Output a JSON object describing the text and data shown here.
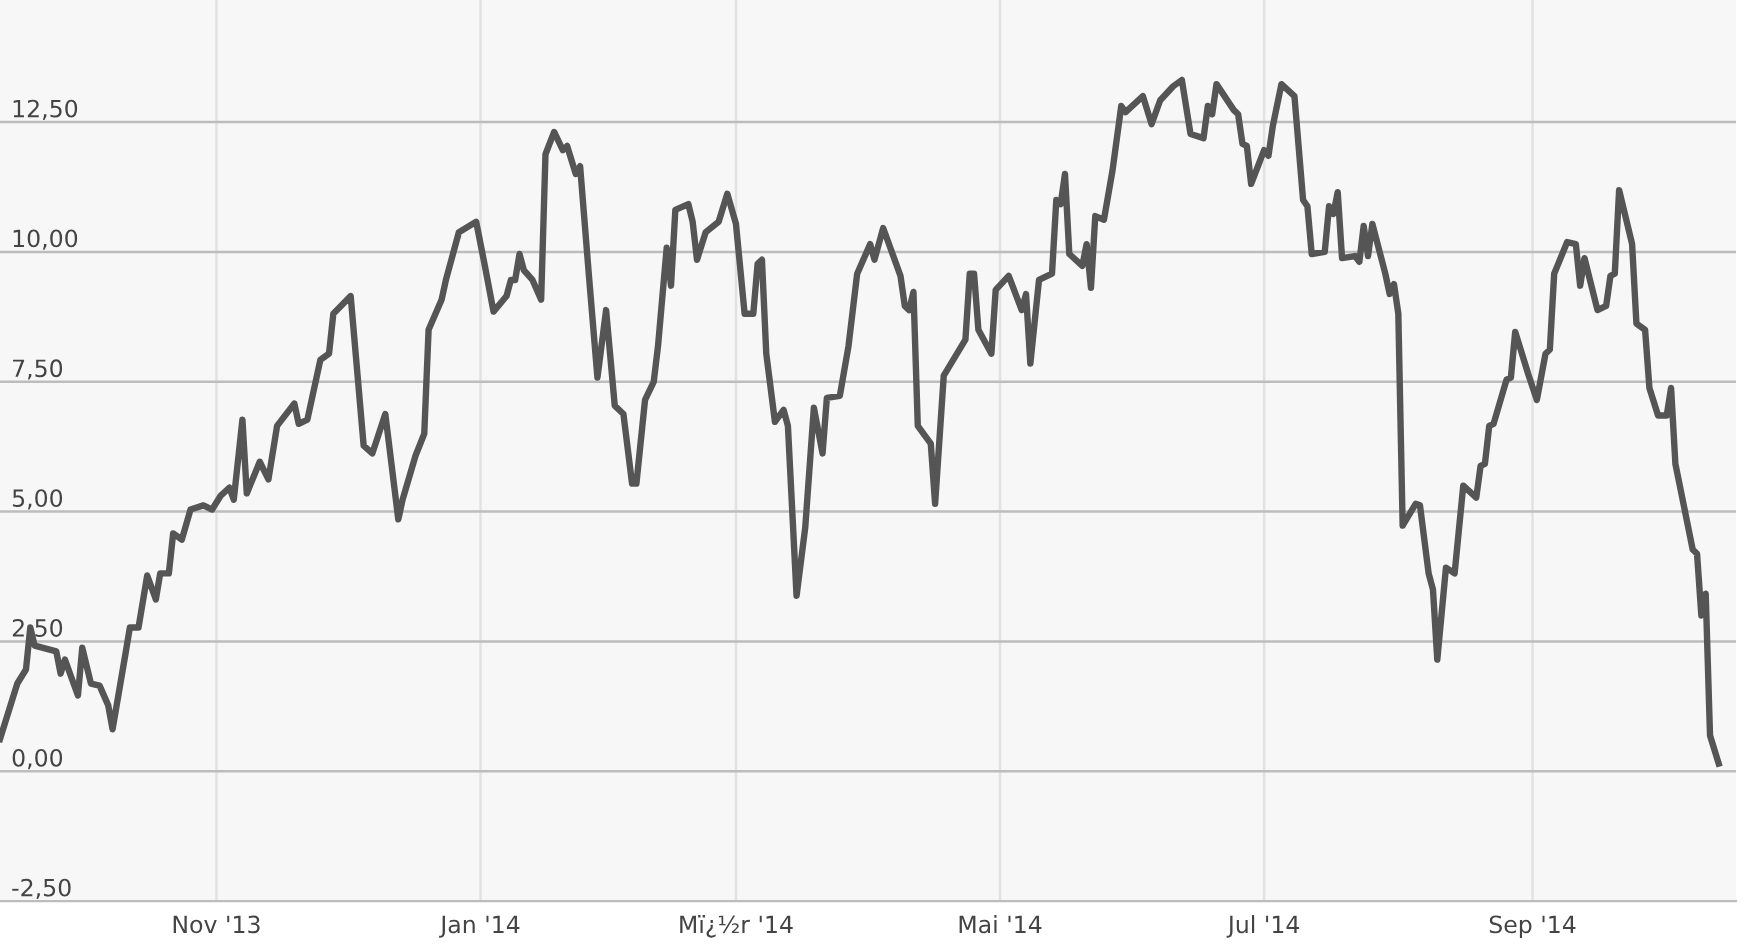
{
  "chart_data": {
    "type": "line",
    "x": [
      "2013-09-12",
      "2013-09-16",
      "2013-09-18",
      "2013-09-19",
      "2013-09-20",
      "2013-09-25",
      "2013-09-26",
      "2013-09-27",
      "2013-09-30",
      "2013-10-01",
      "2013-10-03",
      "2013-10-05",
      "2013-10-07",
      "2013-10-08",
      "2013-10-11",
      "2013-10-12",
      "2013-10-14",
      "2013-10-16",
      "2013-10-18",
      "2013-10-19",
      "2013-10-21",
      "2013-10-22",
      "2013-10-24",
      "2013-10-26",
      "2013-10-29",
      "2013-10-31",
      "2013-11-02",
      "2013-11-04",
      "2013-11-05",
      "2013-11-07",
      "2013-11-08",
      "2013-11-11",
      "2013-11-13",
      "2013-11-15",
      "2013-11-19",
      "2013-11-20",
      "2013-11-22",
      "2013-11-25",
      "2013-11-27",
      "2013-11-28",
      "2013-12-02",
      "2013-12-05",
      "2013-12-07",
      "2013-12-10",
      "2013-12-13",
      "2013-12-14",
      "2013-12-17",
      "2013-12-19",
      "2013-12-20",
      "2013-12-23",
      "2013-12-24",
      "2013-12-27",
      "2013-12-31",
      "2014-01-02",
      "2014-01-04",
      "2014-01-07",
      "2014-01-08",
      "2014-01-09",
      "2014-01-10",
      "2014-01-11",
      "2014-01-13",
      "2014-01-15",
      "2014-01-16",
      "2014-01-18",
      "2014-01-20",
      "2014-01-21",
      "2014-01-23",
      "2014-01-24",
      "2014-01-26",
      "2014-01-28",
      "2014-01-30",
      "2014-02-01",
      "2014-02-03",
      "2014-02-05",
      "2014-02-06",
      "2014-02-08",
      "2014-02-10",
      "2014-02-11",
      "2014-02-13",
      "2014-02-14",
      "2014-02-15",
      "2014-02-18",
      "2014-02-19",
      "2014-02-20",
      "2014-02-22",
      "2014-02-25",
      "2014-02-27",
      "2014-03-01",
      "2014-03-03",
      "2014-03-05",
      "2014-03-06",
      "2014-03-07",
      "2014-03-08",
      "2014-03-10",
      "2014-03-12",
      "2014-03-13",
      "2014-03-15",
      "2014-03-17",
      "2014-03-19",
      "2014-03-21",
      "2014-03-22",
      "2014-03-25",
      "2014-03-27",
      "2014-03-29",
      "2014-04-01",
      "2014-04-02",
      "2014-04-04",
      "2014-04-08",
      "2014-04-09",
      "2014-04-10",
      "2014-04-11",
      "2014-04-12",
      "2014-04-15",
      "2014-04-16",
      "2014-04-18",
      "2014-04-23",
      "2014-04-24",
      "2014-04-25",
      "2014-04-26",
      "2014-04-29",
      "2014-04-30",
      "2014-05-03",
      "2014-05-06",
      "2014-05-07",
      "2014-05-08",
      "2014-05-10",
      "2014-05-13",
      "2014-05-14",
      "2014-05-15",
      "2014-05-16",
      "2014-05-17",
      "2014-05-20",
      "2014-05-21",
      "2014-05-22",
      "2014-05-23",
      "2014-05-25",
      "2014-05-27",
      "2014-05-29",
      "2014-05-30",
      "2014-06-03",
      "2014-06-05",
      "2014-06-07",
      "2014-06-10",
      "2014-06-12",
      "2014-06-14",
      "2014-06-17",
      "2014-06-18",
      "2014-06-19",
      "2014-06-20",
      "2014-06-24",
      "2014-06-25",
      "2014-06-26",
      "2014-06-27",
      "2014-06-28",
      "2014-07-01",
      "2014-07-02",
      "2014-07-03",
      "2014-07-05",
      "2014-07-08",
      "2014-07-10",
      "2014-07-11",
      "2014-07-12",
      "2014-07-15",
      "2014-07-16",
      "2014-07-17",
      "2014-07-18",
      "2014-07-19",
      "2014-07-22",
      "2014-07-23",
      "2014-07-24",
      "2014-07-25",
      "2014-07-26",
      "2014-07-29",
      "2014-07-30",
      "2014-07-31",
      "2014-08-01",
      "2014-08-02",
      "2014-08-05",
      "2014-08-06",
      "2014-08-08",
      "2014-08-09",
      "2014-08-10",
      "2014-08-12",
      "2014-08-14",
      "2014-08-16",
      "2014-08-19",
      "2014-08-20",
      "2014-08-21",
      "2014-08-22",
      "2014-08-23",
      "2014-08-26",
      "2014-08-27",
      "2014-08-28",
      "2014-08-31",
      "2014-09-02",
      "2014-09-04",
      "2014-09-05",
      "2014-09-06",
      "2014-09-09",
      "2014-09-11",
      "2014-09-12",
      "2014-09-13",
      "2014-09-16",
      "2014-09-18",
      "2014-09-19",
      "2014-09-20",
      "2014-09-21",
      "2014-09-24",
      "2014-09-25",
      "2014-09-27",
      "2014-09-28",
      "2014-09-30",
      "2014-10-02",
      "2014-10-03",
      "2014-10-04",
      "2014-10-08",
      "2014-10-09",
      "2014-10-10",
      "2014-10-11",
      "2014-10-12",
      "2014-10-14"
    ],
    "series": [
      {
        "color": "#555555",
        "values": [
          0.62,
          1.69,
          1.96,
          2.77,
          2.42,
          2.31,
          1.88,
          2.15,
          1.46,
          2.38,
          1.69,
          1.65,
          1.27,
          0.81,
          2.27,
          2.77,
          2.77,
          3.77,
          3.31,
          3.81,
          3.81,
          4.58,
          4.46,
          5.04,
          5.12,
          5.04,
          5.31,
          5.46,
          5.23,
          6.77,
          5.35,
          5.96,
          5.62,
          6.65,
          7.08,
          6.69,
          6.77,
          7.92,
          8.04,
          8.81,
          9.15,
          6.27,
          6.12,
          6.88,
          4.85,
          5.23,
          6.08,
          6.5,
          8.5,
          9.08,
          9.46,
          10.38,
          10.58,
          9.73,
          8.85,
          9.15,
          9.46,
          9.46,
          9.96,
          9.65,
          9.46,
          9.08,
          11.88,
          12.31,
          11.96,
          12.04,
          11.5,
          11.65,
          9.58,
          7.58,
          8.88,
          7.04,
          6.88,
          5.54,
          5.54,
          7.15,
          7.5,
          8.19,
          10.08,
          9.35,
          10.81,
          10.92,
          10.58,
          9.85,
          10.38,
          10.58,
          11.12,
          10.54,
          8.81,
          8.81,
          9.77,
          9.85,
          8.04,
          6.73,
          6.96,
          6.65,
          3.38,
          4.69,
          7.0,
          6.12,
          7.19,
          7.23,
          8.19,
          9.58,
          10.15,
          9.85,
          10.46,
          9.54,
          8.96,
          8.88,
          9.23,
          6.65,
          6.31,
          5.15,
          7.62,
          8.31,
          9.58,
          9.58,
          8.5,
          8.04,
          9.27,
          9.54,
          8.88,
          9.19,
          7.85,
          9.46,
          9.58,
          11.0,
          10.92,
          11.5,
          9.96,
          9.73,
          10.15,
          9.31,
          10.69,
          10.62,
          11.58,
          12.81,
          12.69,
          13.0,
          12.46,
          12.92,
          13.19,
          13.31,
          12.27,
          12.19,
          12.81,
          12.65,
          13.23,
          12.73,
          12.65,
          12.08,
          12.04,
          11.31,
          11.96,
          11.85,
          12.42,
          13.23,
          13.0,
          11.0,
          10.88,
          9.96,
          10.0,
          10.88,
          10.73,
          11.15,
          9.88,
          9.92,
          9.81,
          10.5,
          9.92,
          10.54,
          9.58,
          9.19,
          9.38,
          8.81,
          4.73,
          5.15,
          5.12,
          3.81,
          3.5,
          2.15,
          3.92,
          3.81,
          5.5,
          5.27,
          5.88,
          5.92,
          6.65,
          6.69,
          7.54,
          7.58,
          8.46,
          7.65,
          7.15,
          8.04,
          8.12,
          9.58,
          10.19,
          10.15,
          9.35,
          9.88,
          8.88,
          8.96,
          9.54,
          9.58,
          11.19,
          10.15,
          8.62,
          8.5,
          7.38,
          6.85,
          6.85,
          7.38,
          5.92,
          4.27,
          4.19,
          3.0,
          3.42,
          0.69,
          0.15
        ]
      }
    ],
    "xlim": [
      "2013-09-12",
      "2014-10-18"
    ],
    "xticks": [
      {
        "value": "2013-11-01",
        "label": "Nov '13"
      },
      {
        "value": "2014-01-01",
        "label": "Jan '14"
      },
      {
        "value": "2014-03-01",
        "label": "Mï¿½r '14"
      },
      {
        "value": "2014-05-01",
        "label": "Mai '14"
      },
      {
        "value": "2014-07-01",
        "label": "Jul '14"
      },
      {
        "value": "2014-09-01",
        "label": "Sep '14"
      }
    ],
    "ylim": [
      -2.5,
      14.85
    ],
    "yticks": [
      {
        "value": -2.5,
        "label": "-2,50"
      },
      {
        "value": 0,
        "label": "0,00"
      },
      {
        "value": 2.5,
        "label": "2,50"
      },
      {
        "value": 5,
        "label": "5,00"
      },
      {
        "value": 7.5,
        "label": "7,50"
      },
      {
        "value": 10,
        "label": "10,00"
      },
      {
        "value": 12.5,
        "label": "12,50"
      }
    ],
    "grid": true,
    "line_style": "solid"
  }
}
